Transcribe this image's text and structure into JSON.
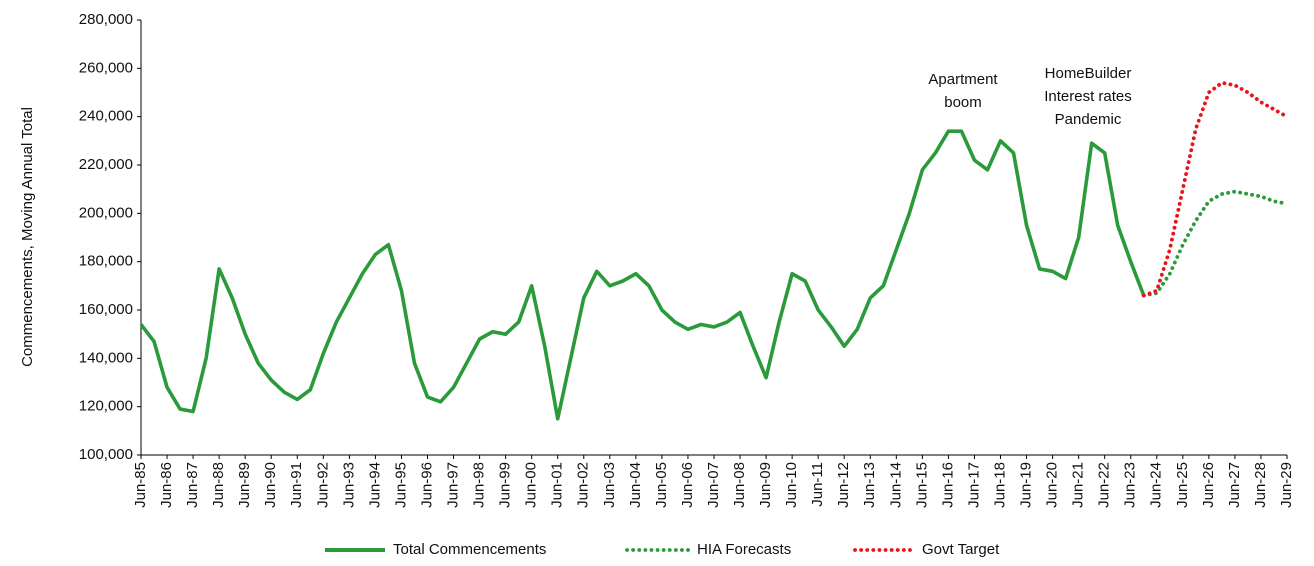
{
  "chart_data": {
    "type": "line",
    "y_label": "Commencements, Moving Annual Total",
    "categories": [
      "Jun-85",
      null,
      "Jun-86",
      null,
      "Jun-87",
      null,
      "Jun-88",
      null,
      "Jun-89",
      null,
      "Jun-90",
      null,
      "Jun-91",
      null,
      "Jun-92",
      null,
      "Jun-93",
      null,
      "Jun-94",
      null,
      "Jun-95",
      null,
      "Jun-96",
      null,
      "Jun-97",
      null,
      "Jun-98",
      null,
      "Jun-99",
      null,
      "Jun-00",
      null,
      "Jun-01",
      null,
      "Jun-02",
      null,
      "Jun-03",
      null,
      "Jun-04",
      null,
      "Jun-05",
      null,
      "Jun-06",
      null,
      "Jun-07",
      null,
      "Jun-08",
      null,
      "Jun-09",
      null,
      "Jun-10",
      null,
      "Jun-11",
      null,
      "Jun-12",
      null,
      "Jun-13",
      null,
      "Jun-14",
      null,
      "Jun-15",
      null,
      "Jun-16",
      null,
      "Jun-17",
      null,
      "Jun-18",
      null,
      "Jun-19",
      null,
      "Jun-20",
      null,
      "Jun-21",
      null,
      "Jun-22",
      null,
      "Jun-23",
      null,
      "Jun-24",
      null,
      "Jun-25",
      null,
      "Jun-26",
      null,
      "Jun-27",
      null,
      "Jun-28",
      null,
      "Jun-29"
    ],
    "series": [
      {
        "name": "Total Commencements",
        "color": "#2a9a3a",
        "style": "solid",
        "values": [
          154000,
          147000,
          128000,
          119000,
          118000,
          140000,
          177000,
          165000,
          150000,
          138000,
          131000,
          126000,
          123000,
          127000,
          142000,
          155000,
          165000,
          175000,
          183000,
          187000,
          168000,
          138000,
          124000,
          122000,
          128000,
          138000,
          148000,
          151000,
          150000,
          155000,
          170000,
          145000,
          115000,
          140000,
          165000,
          176000,
          170000,
          172000,
          175000,
          170000,
          160000,
          155000,
          152000,
          154000,
          153000,
          155000,
          159000,
          145000,
          132000,
          155000,
          175000,
          172000,
          160000,
          153000,
          145000,
          152000,
          165000,
          170000,
          185000,
          200000,
          218000,
          225000,
          234000,
          234000,
          222000,
          218000,
          230000,
          225000,
          195000,
          177000,
          176000,
          173000,
          190000,
          229000,
          225000,
          195000,
          180000,
          166000,
          null,
          null,
          null,
          null,
          null,
          null,
          null,
          null,
          null,
          null,
          null
        ]
      },
      {
        "name": "HIA Forecasts",
        "color": "#2a9a3a",
        "style": "dotted",
        "values": [
          null,
          null,
          null,
          null,
          null,
          null,
          null,
          null,
          null,
          null,
          null,
          null,
          null,
          null,
          null,
          null,
          null,
          null,
          null,
          null,
          null,
          null,
          null,
          null,
          null,
          null,
          null,
          null,
          null,
          null,
          null,
          null,
          null,
          null,
          null,
          null,
          null,
          null,
          null,
          null,
          null,
          null,
          null,
          null,
          null,
          null,
          null,
          null,
          null,
          null,
          null,
          null,
          null,
          null,
          null,
          null,
          null,
          null,
          null,
          null,
          null,
          null,
          null,
          null,
          null,
          null,
          null,
          null,
          null,
          null,
          null,
          null,
          null,
          null,
          null,
          null,
          null,
          166000,
          167000,
          175000,
          187000,
          197000,
          205000,
          208000,
          209000,
          208000,
          207000,
          205000,
          204000
        ]
      },
      {
        "name": "Govt Target",
        "color": "#e8141b",
        "style": "dotted",
        "values": [
          null,
          null,
          null,
          null,
          null,
          null,
          null,
          null,
          null,
          null,
          null,
          null,
          null,
          null,
          null,
          null,
          null,
          null,
          null,
          null,
          null,
          null,
          null,
          null,
          null,
          null,
          null,
          null,
          null,
          null,
          null,
          null,
          null,
          null,
          null,
          null,
          null,
          null,
          null,
          null,
          null,
          null,
          null,
          null,
          null,
          null,
          null,
          null,
          null,
          null,
          null,
          null,
          null,
          null,
          null,
          null,
          null,
          null,
          null,
          null,
          null,
          null,
          null,
          null,
          null,
          null,
          null,
          null,
          null,
          null,
          null,
          null,
          null,
          null,
          null,
          null,
          null,
          166000,
          168000,
          185000,
          210000,
          235000,
          250000,
          254000,
          253000,
          250000,
          246000,
          243000,
          240000
        ]
      }
    ],
    "annotations": [
      [
        "Apartment",
        "boom"
      ],
      [
        "HomeBuilder",
        "Interest rates",
        "Pandemic"
      ]
    ],
    "ylim": [
      100000,
      280000
    ],
    "yticks": [
      {
        "value": 100000,
        "label": "100,000"
      },
      {
        "value": 120000,
        "label": "120,000"
      },
      {
        "value": 140000,
        "label": "140,000"
      },
      {
        "value": 160000,
        "label": "160,000"
      },
      {
        "value": 180000,
        "label": "180,000"
      },
      {
        "value": 200000,
        "label": "200,000"
      },
      {
        "value": 220000,
        "label": "220,000"
      },
      {
        "value": 240000,
        "label": "240,000"
      },
      {
        "value": 260000,
        "label": "260,000"
      },
      {
        "value": 280000,
        "label": "280,000"
      }
    ],
    "legend": "bottom"
  }
}
